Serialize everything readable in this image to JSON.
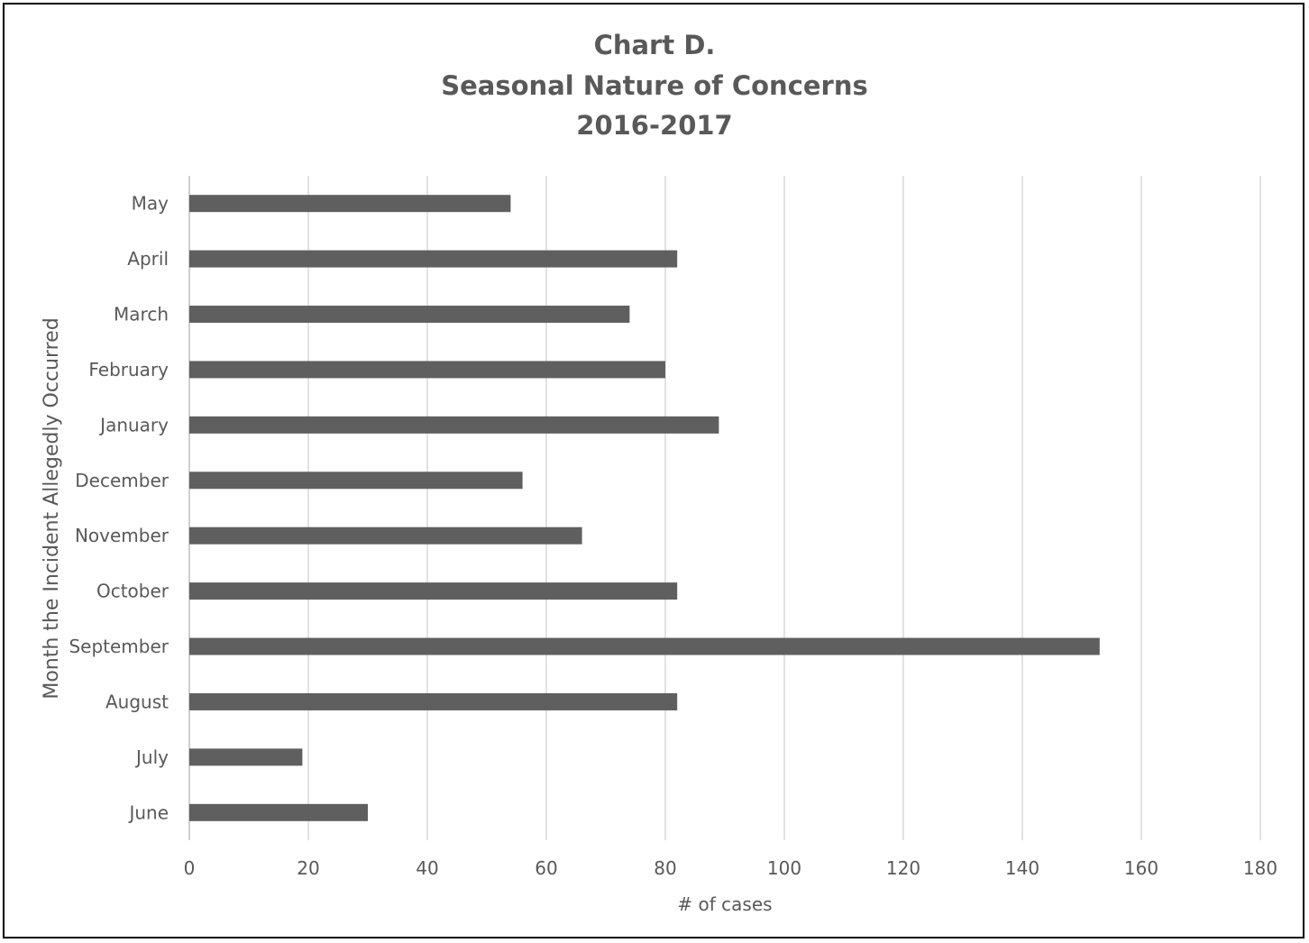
{
  "chart_data": {
    "type": "bar",
    "orientation": "horizontal",
    "title_lines": [
      "Chart D.",
      "Seasonal Nature of Concerns",
      "2016-2017"
    ],
    "xlabel": "# of cases",
    "ylabel": "Month the Incident Allegedly Occurred",
    "categories": [
      "June",
      "July",
      "August",
      "September",
      "October",
      "November",
      "December",
      "January",
      "February",
      "March",
      "April",
      "May"
    ],
    "values": [
      30,
      19,
      82,
      153,
      82,
      66,
      56,
      89,
      80,
      74,
      82,
      54
    ],
    "xlim": [
      0,
      180
    ],
    "xticks": [
      "0",
      "20",
      "40",
      "60",
      "80",
      "100",
      "120",
      "140",
      "160",
      "180"
    ],
    "grid": "vertical",
    "legend": "none",
    "bar_color": "#5f5f5f",
    "grid_color": "#d9d9d9",
    "text_color": "#595959"
  }
}
